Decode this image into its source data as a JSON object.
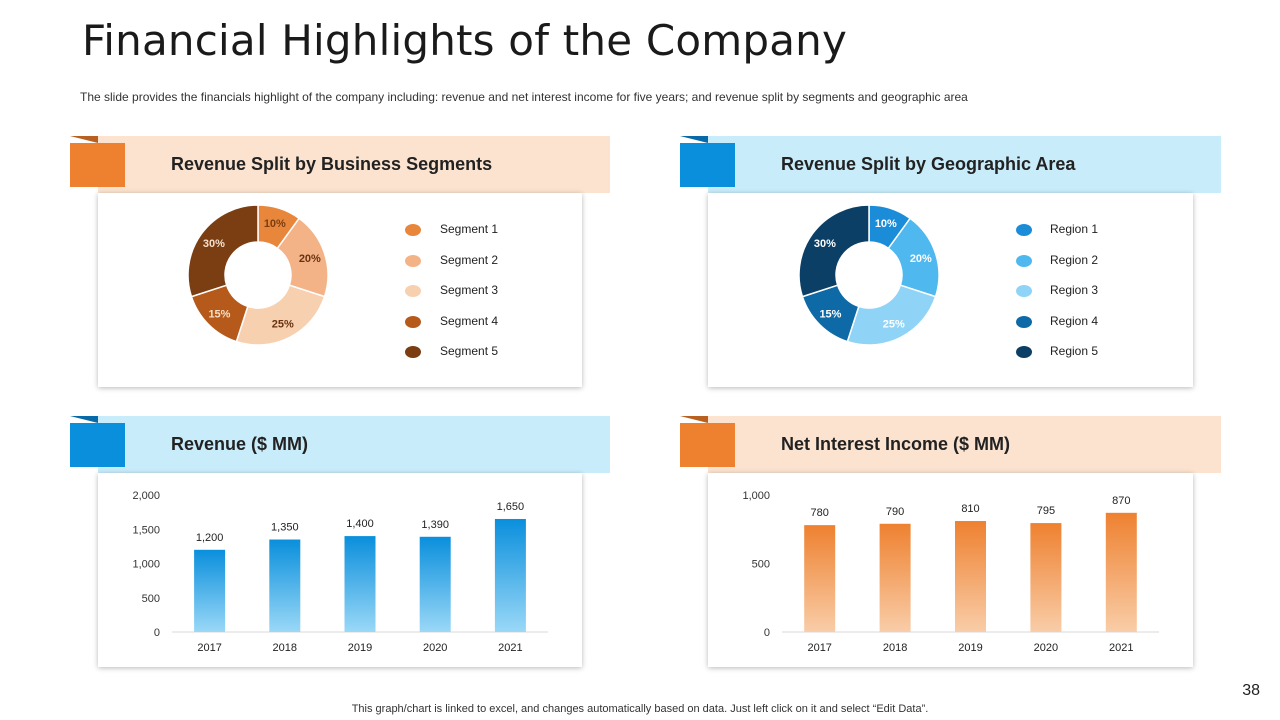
{
  "title": "Financial Highlights of the Company",
  "subtitle": "The slide provides  the financials highlight of the company including: revenue  and net interest income for five  years; and revenue  split by segments and geographic  area",
  "footer": "This graph/chart is linked to excel,  and changes automatically based on data. Just left click on it and select “Edit Data”.",
  "page_number": "38",
  "colors": {
    "orange": "#ee8130",
    "orange_light": "#fbe3d0",
    "blue": "#0a8fdc",
    "blue_light": "#c9ecfb"
  },
  "chart_data": [
    {
      "type": "pie",
      "title": "Revenue Split by Business Segments",
      "categories": [
        "Segment 1",
        "Segment 2",
        "Segment 3",
        "Segment 4",
        "Segment 5"
      ],
      "values": [
        10,
        20,
        25,
        15,
        30
      ],
      "value_labels": [
        "10%",
        "20%",
        "25%",
        "15%",
        "30%"
      ],
      "colors": [
        "#e8873b",
        "#f3b387",
        "#f7d0b0",
        "#b55a1a",
        "#7a3e12"
      ],
      "legend_colors": [
        "#e8873b",
        "#f3b387",
        "#f7d0b0",
        "#b55a1a",
        "#7a3e12"
      ]
    },
    {
      "type": "pie",
      "title": "Revenue Split by Geographic Area",
      "categories": [
        "Region  1",
        "Region  2",
        "Region  3",
        "Region  4",
        "Region  5"
      ],
      "values": [
        10,
        20,
        25,
        15,
        30
      ],
      "value_labels": [
        "10%",
        "20%",
        "25%",
        "15%",
        "30%"
      ],
      "colors": [
        "#1a8cd8",
        "#4fb8ef",
        "#8fd3f7",
        "#0e6aa6",
        "#0b3f66"
      ],
      "legend_colors": [
        "#1a8cd8",
        "#4fb8ef",
        "#8fd3f7",
        "#0e6aa6",
        "#0b3f66"
      ]
    },
    {
      "type": "bar",
      "title": "Revenue ($ MM)",
      "categories": [
        "2017",
        "2018",
        "2019",
        "2020",
        "2021"
      ],
      "values": [
        1200,
        1350,
        1400,
        1390,
        1650
      ],
      "value_labels": [
        "1,200",
        "1,350",
        "1,400",
        "1,390",
        "1,650"
      ],
      "ylim": [
        0,
        2000
      ],
      "yticks": [
        0,
        500,
        1000,
        1500,
        2000
      ],
      "ytick_labels": [
        "0",
        "500",
        "1,000",
        "1,500",
        "2,000"
      ],
      "color": "#0a8fdc",
      "color_light": "#9ad8f7"
    },
    {
      "type": "bar",
      "title": "Net Interest Income ($ MM)",
      "categories": [
        "2017",
        "2018",
        "2019",
        "2020",
        "2021"
      ],
      "values": [
        780,
        790,
        810,
        795,
        870
      ],
      "value_labels": [
        "780",
        "790",
        "810",
        "795",
        "870"
      ],
      "ylim": [
        0,
        1000
      ],
      "yticks": [
        0,
        500,
        1000
      ],
      "ytick_labels": [
        "0",
        "500",
        "1,000"
      ],
      "color": "#ee8130",
      "color_light": "#f9cda8"
    }
  ]
}
